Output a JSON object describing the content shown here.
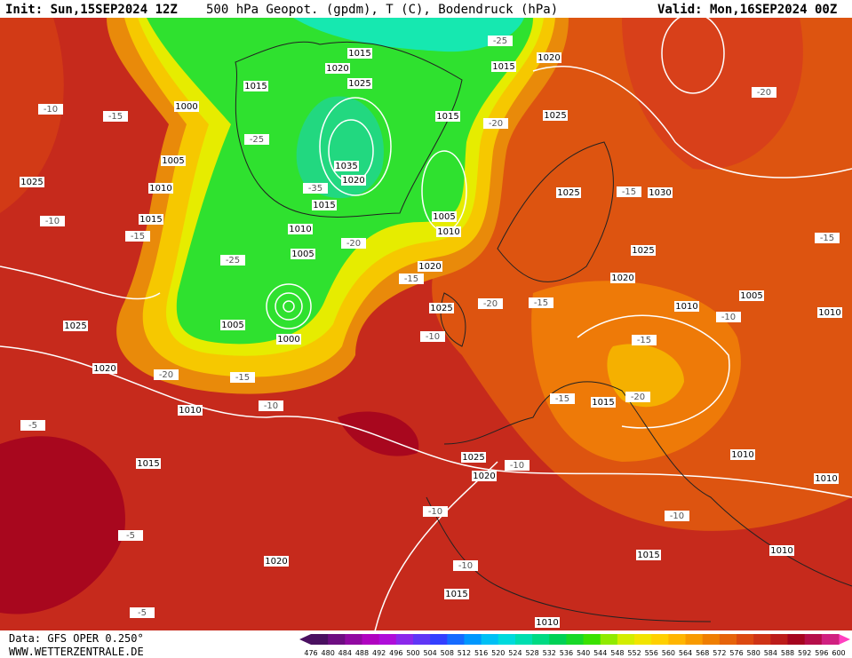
{
  "header": {
    "init": "Init: Sun,15SEP2024 12Z",
    "title": "500 hPa Geopot. (gpdm), T (C), Bodendruck (hPa)",
    "valid": "Valid: Mon,16SEP2024 00Z"
  },
  "map": {
    "isobar_labels": [
      "1015",
      "1020",
      "1015",
      "1025",
      "1015",
      "1020",
      "1000",
      "1025",
      "1015",
      "1005",
      "1010",
      "1035",
      "1020",
      "1015",
      "1025",
      "1030",
      "1015",
      "1010",
      "1005",
      "1010",
      "1025",
      "1005",
      "1020",
      "1025",
      "1020",
      "1025",
      "1005",
      "1010",
      "1010",
      "1025",
      "1005",
      "1000",
      "1020",
      "1010",
      "1015",
      "1015",
      "1025",
      "1020",
      "1010",
      "1010",
      "1020",
      "1015",
      "1010",
      "1015",
      "1010"
    ],
    "temperature_labels": [
      "-25",
      "-10",
      "-15",
      "-20",
      "-25",
      "-20",
      "-35",
      "-15",
      "-10",
      "-15",
      "-25",
      "-20",
      "-15",
      "-15",
      "-20",
      "-15",
      "-10",
      "-10",
      "-15",
      "-20",
      "-15",
      "-10",
      "-15",
      "-20",
      "-5",
      "-10",
      "-10",
      "-10",
      "-5",
      "-10",
      "-5"
    ]
  },
  "legend": {
    "labels": [
      "476",
      "480",
      "484",
      "488",
      "492",
      "496",
      "500",
      "504",
      "508",
      "512",
      "516",
      "520",
      "524",
      "528",
      "532",
      "536",
      "540",
      "544",
      "548",
      "552",
      "556",
      "560",
      "564",
      "568",
      "572",
      "576",
      "580",
      "584",
      "588",
      "592",
      "596",
      "600"
    ]
  },
  "footer": {
    "data": "Data: GFS OPER 0.250°",
    "site": "WWW.WETTERZENTRALE.DE"
  }
}
